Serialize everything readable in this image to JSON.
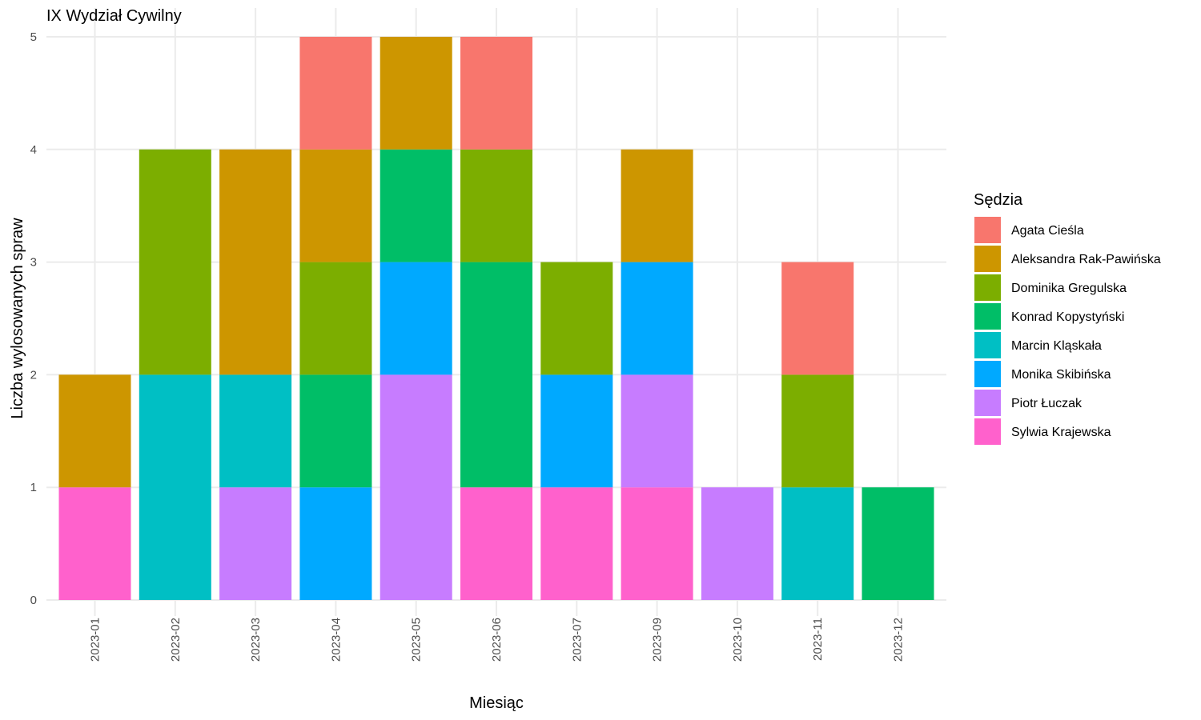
{
  "chart_data": {
    "type": "bar",
    "stacked": true,
    "title": "IX Wydział Cywilny",
    "xlabel": "Miesiąc",
    "ylabel": "Liczba wylosowanych spraw",
    "ylim": [
      0,
      5
    ],
    "yticks": [
      "0",
      "1",
      "2",
      "3",
      "4",
      "5"
    ],
    "grid": true,
    "legend_title": "Sędzia",
    "legend_position": "right",
    "categories": [
      "2023-01",
      "2023-02",
      "2023-03",
      "2023-04",
      "2023-05",
      "2023-06",
      "2023-07",
      "2023-09",
      "2023-10",
      "2023-11",
      "2023-12"
    ],
    "series": [
      {
        "name": "Agata Cieśla",
        "color": "#F8766D",
        "values": [
          0,
          0,
          0,
          1,
          0,
          1,
          0,
          0,
          0,
          1,
          0
        ]
      },
      {
        "name": "Aleksandra Rak-Pawińska",
        "color": "#CD9600",
        "values": [
          1,
          0,
          2,
          1,
          1,
          0,
          0,
          1,
          0,
          0,
          0
        ]
      },
      {
        "name": "Dominika Gregulska",
        "color": "#7CAE00",
        "values": [
          0,
          2,
          0,
          1,
          0,
          1,
          1,
          0,
          0,
          1,
          0
        ]
      },
      {
        "name": "Konrad Kopystyński",
        "color": "#00BE67",
        "values": [
          0,
          0,
          0,
          1,
          1,
          2,
          0,
          0,
          0,
          0,
          1
        ]
      },
      {
        "name": "Marcin Kląskała",
        "color": "#00BFC4",
        "values": [
          0,
          2,
          1,
          0,
          0,
          0,
          0,
          0,
          0,
          1,
          0
        ]
      },
      {
        "name": "Monika Skibińska",
        "color": "#00A9FF",
        "values": [
          0,
          0,
          0,
          1,
          1,
          0,
          1,
          1,
          0,
          0,
          0
        ]
      },
      {
        "name": "Piotr Łuczak",
        "color": "#C77CFF",
        "values": [
          0,
          0,
          1,
          0,
          2,
          0,
          0,
          1,
          1,
          0,
          0
        ]
      },
      {
        "name": "Sylwia Krajewska",
        "color": "#FF61CC",
        "values": [
          1,
          0,
          0,
          0,
          0,
          1,
          1,
          1,
          0,
          0,
          0
        ]
      }
    ]
  }
}
